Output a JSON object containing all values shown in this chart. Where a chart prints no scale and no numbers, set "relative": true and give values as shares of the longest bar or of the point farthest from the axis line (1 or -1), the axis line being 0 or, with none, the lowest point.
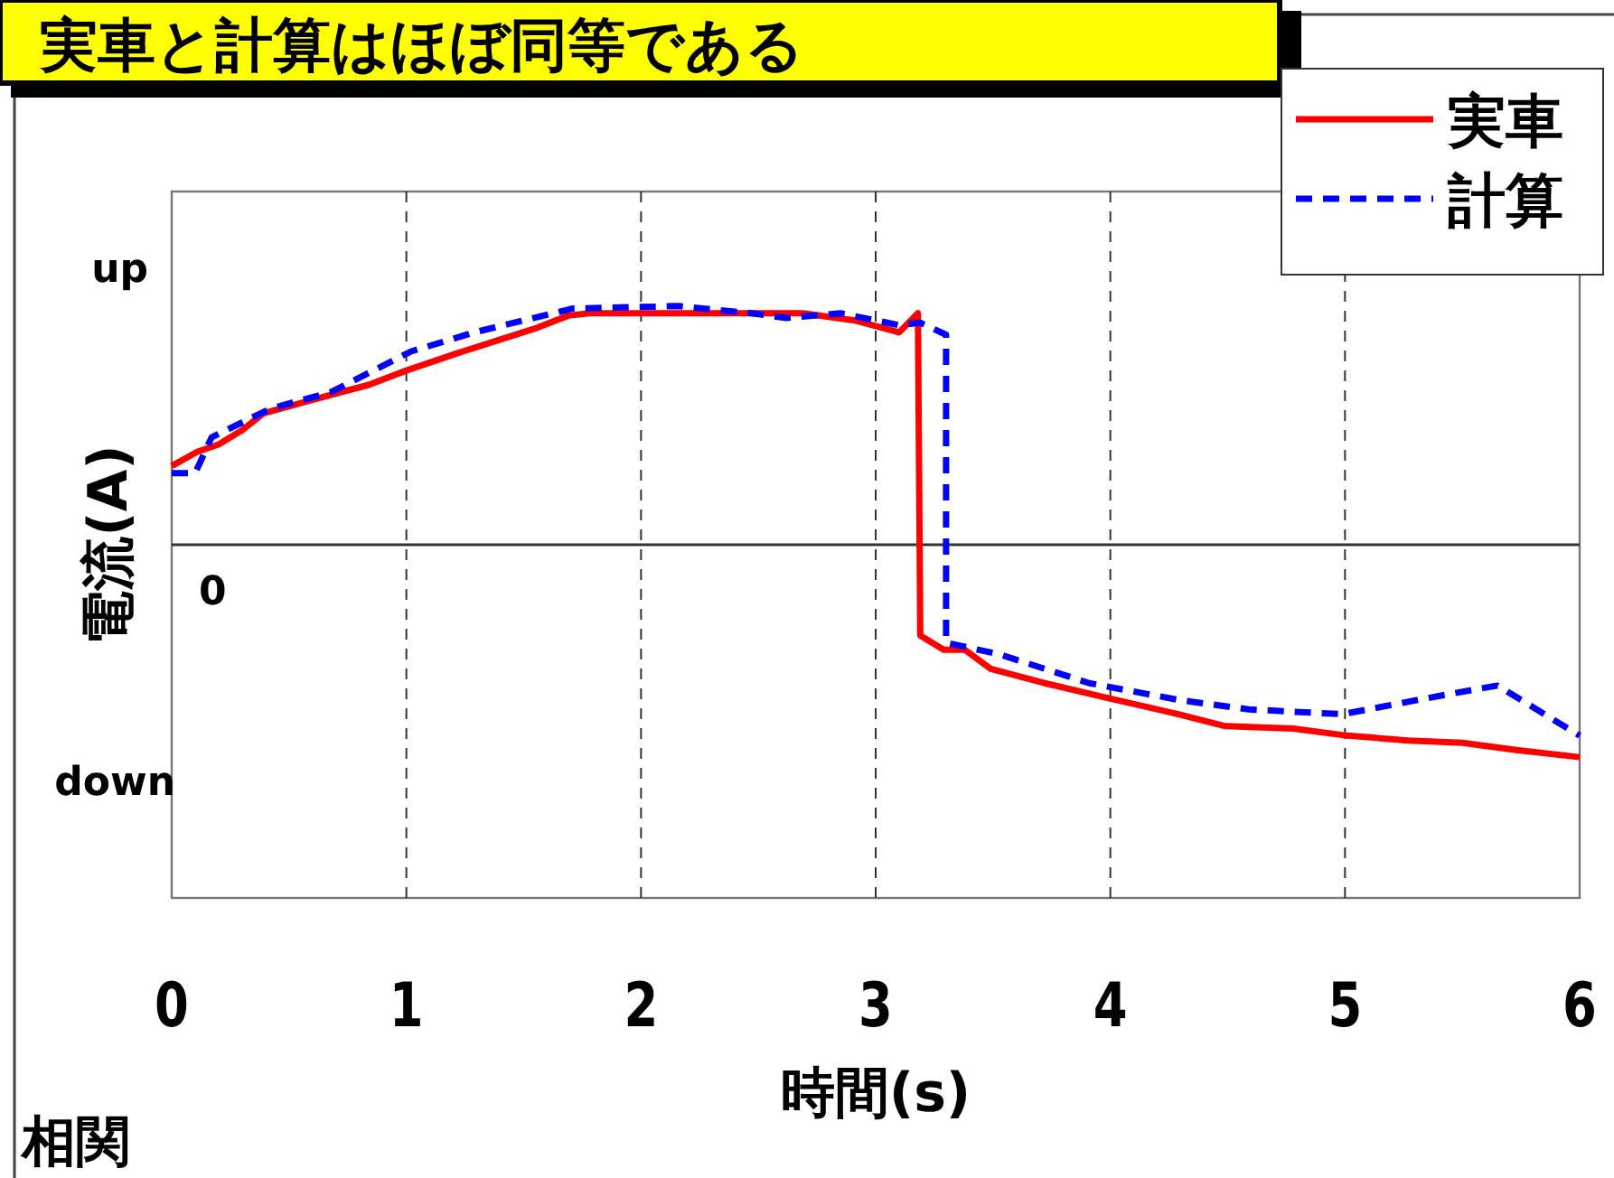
{
  "chart_data": {
    "type": "line",
    "title": "実車と計算はほぼ同等である",
    "xlabel": "時間(s)",
    "ylabel": "電流(A)",
    "relative": true,
    "annotations": [
      "up",
      "0",
      "down",
      "相関"
    ],
    "xlim": [
      0,
      6
    ],
    "xticks": [
      0,
      1,
      2,
      3,
      4,
      5,
      6
    ],
    "grid": "x",
    "legend": "top right",
    "marker": "none",
    "series": [
      {
        "name": "実車",
        "color": "#ff0000",
        "line_style": "solid",
        "x": [
          0,
          0.11,
          0.2,
          0.3,
          0.39,
          0.61,
          0.84,
          1.0,
          1.21,
          1.4,
          1.56,
          1.69,
          1.78,
          2.69,
          2.91,
          3.1,
          3.18,
          3.19,
          3.29,
          3.38,
          3.49,
          3.72,
          3.98,
          4.29,
          4.49,
          4.78,
          5.01,
          5.27,
          5.5,
          5.73,
          6.0
        ],
        "values": [
          0.33,
          0.39,
          0.42,
          0.48,
          0.55,
          0.61,
          0.67,
          0.73,
          0.8,
          0.86,
          0.91,
          0.96,
          0.97,
          0.97,
          0.94,
          0.89,
          0.97,
          -0.38,
          -0.44,
          -0.44,
          -0.52,
          -0.58,
          -0.64,
          -0.71,
          -0.76,
          -0.77,
          -0.8,
          -0.82,
          -0.83,
          -0.86,
          -0.89
        ]
      },
      {
        "name": "計算",
        "color": "#0000ff",
        "line_style": "dashed",
        "x": [
          0,
          0.1,
          0.17,
          0.42,
          0.68,
          1.02,
          1.29,
          1.71,
          2.16,
          2.47,
          2.62,
          2.85,
          3.1,
          3.19,
          3.3,
          3.3,
          3.53,
          3.91,
          4.29,
          4.59,
          4.99,
          5.42,
          5.65,
          6.0
        ],
        "values": [
          0.3,
          0.3,
          0.45,
          0.57,
          0.64,
          0.81,
          0.89,
          0.99,
          1.0,
          0.97,
          0.95,
          0.97,
          0.92,
          0.93,
          0.88,
          -0.41,
          -0.46,
          -0.58,
          -0.65,
          -0.69,
          -0.71,
          -0.63,
          -0.59,
          -0.8
        ]
      }
    ]
  }
}
